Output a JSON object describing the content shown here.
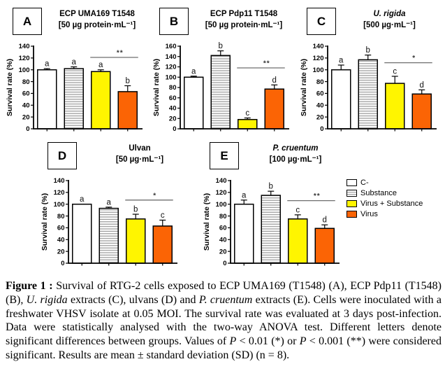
{
  "colors": {
    "yellow": "#FFF500",
    "orange": "#FB6405",
    "stripe": "#8F8F8F",
    "sig_line": "#6F6F6F",
    "bar_fills": [
      "#FFFFFF",
      "stripes",
      "#FFF500",
      "#FB6405"
    ]
  },
  "chart_data": [
    {
      "type": "bar",
      "panel_label": "A",
      "title": "ECP UMA169 T1548",
      "subtitle": "[50 µg protein·mL⁻¹]",
      "ylabel": "Survival rate (%)",
      "ylim": [
        0,
        140
      ],
      "ytick_step": 20,
      "categories": [
        "C-",
        "Substance",
        "Virus + Substance",
        "Virus"
      ],
      "values": [
        100,
        102,
        97,
        63
      ],
      "errors": [
        2,
        3,
        3,
        10
      ],
      "letters": [
        "a",
        "a",
        "a",
        "b"
      ],
      "significance": {
        "symbol": "**",
        "between": [
          "Virus + Substance",
          "Virus"
        ],
        "from": 2,
        "to": 3,
        "line_y": 121
      }
    },
    {
      "type": "bar",
      "panel_label": "B",
      "title": "ECP Pdp11 T1548",
      "subtitle": "[50 µg protein·mL⁻¹]",
      "ylabel": "Survival rate (%)",
      "ylim": [
        0,
        160
      ],
      "ytick_step": 20,
      "categories": [
        "C-",
        "Substance",
        "Virus + Substance",
        "Virus"
      ],
      "values": [
        100,
        142,
        18,
        77
      ],
      "errors": [
        2,
        9,
        3,
        8
      ],
      "letters": [
        "a",
        "b",
        "c",
        "d"
      ],
      "significance": {
        "symbol": "**",
        "between": [
          "Virus + Substance",
          "Virus"
        ],
        "from": 2,
        "to": 3,
        "line_y": 118
      }
    },
    {
      "type": "bar",
      "panel_label": "C",
      "title": "U. rigida",
      "subtitle": "[500 µg·mL⁻¹]",
      "ylabel": "Survival rate (%)",
      "ylim": [
        0,
        140
      ],
      "ytick_step": 20,
      "categories": [
        "C-",
        "Substance",
        "Virus + Substance",
        "Virus"
      ],
      "values": [
        100,
        117,
        77,
        59
      ],
      "errors": [
        8,
        8,
        12,
        7
      ],
      "letters": [
        "a",
        "b",
        "c",
        "d"
      ],
      "significance": {
        "symbol": "*",
        "between": [
          "Virus + Substance",
          "Virus"
        ],
        "from": 2,
        "to": 3,
        "line_y": 112
      }
    },
    {
      "type": "bar",
      "panel_label": "D",
      "title": "Ulvan",
      "subtitle": "[50 µg·mL⁻¹]",
      "ylabel": "Survival rate (%)",
      "ylim": [
        0,
        140
      ],
      "ytick_step": 20,
      "categories": [
        "C-",
        "Substance",
        "Virus + Substance",
        "Virus"
      ],
      "values": [
        100,
        93,
        75,
        63
      ],
      "errors": [
        0,
        2,
        8,
        10
      ],
      "letters": [
        "a",
        "a",
        "b",
        "c"
      ],
      "significance": {
        "symbol": "*",
        "between": [
          "Virus + Substance",
          "Virus"
        ],
        "from": 2,
        "to": 3,
        "line_y": 107
      }
    },
    {
      "type": "bar",
      "panel_label": "E",
      "title": "P. cruentum",
      "subtitle": "[100 µg·mL⁻¹]",
      "ylabel": "Survival rate (%)",
      "ylim": [
        0,
        140
      ],
      "ytick_step": 20,
      "categories": [
        "C-",
        "Substance",
        "Virus + Substance",
        "Virus"
      ],
      "values": [
        100,
        115,
        75,
        59
      ],
      "errors": [
        7,
        7,
        7,
        6
      ],
      "letters": [
        "a",
        "b",
        "c",
        "d"
      ],
      "significance": {
        "symbol": "**",
        "between": [
          "Virus + Substance",
          "Virus"
        ],
        "from": 2,
        "to": 3,
        "line_y": 106
      }
    }
  ],
  "legend": {
    "items": [
      {
        "label": "C-",
        "swatch": "white"
      },
      {
        "label": "Substance",
        "swatch": "stripes"
      },
      {
        "label": "Virus + Substance",
        "swatch": "yellow"
      },
      {
        "label": "Virus",
        "swatch": "orange"
      }
    ]
  },
  "caption": {
    "runs": [
      {
        "text": "Figure 1 : ",
        "bold": true
      },
      {
        "text": "Survival of RTG-2 cells exposed to ECP UMA169 (T1548) (A), ECP Pdp11 (T1548) (B), "
      },
      {
        "text": "U. rigida",
        "italic": true
      },
      {
        "text": " extracts (C), ulvans (D) and "
      },
      {
        "text": "P. cruentum",
        "italic": true
      },
      {
        "text": " extracts (E). Cells were inoculated with a freshwater VHSV isolate at 0.05 MOI. The survival rate was evaluated at 3 days post-infection. Data were statistically analysed with the two-way ANOVA test. Different letters denote significant differences between groups. Values of "
      },
      {
        "text": "P",
        "italic": true
      },
      {
        "text": " < 0.01 (*) or "
      },
      {
        "text": "P",
        "italic": true
      },
      {
        "text": " < 0.001 (**) were considered significant. Results are mean ± standard deviation (SD) (n = 8)."
      }
    ]
  }
}
